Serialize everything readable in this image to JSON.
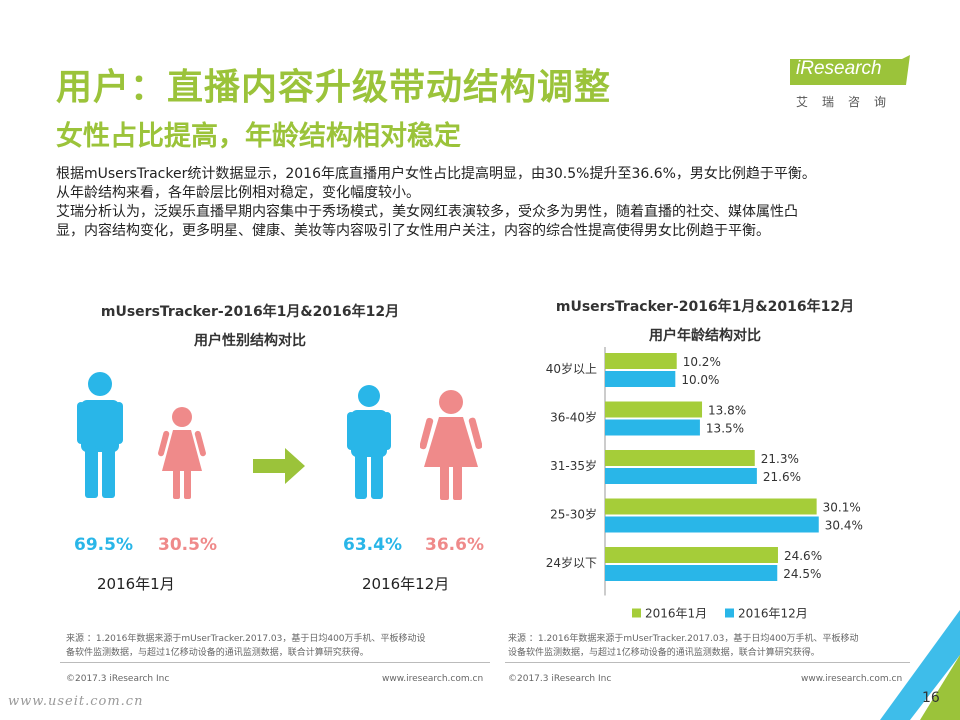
{
  "header": {
    "title": "用户：直播内容升级带动结构调整",
    "subtitle": "女性占比提高，年龄结构相对稳定"
  },
  "logo": {
    "name": "iResearch",
    "cn": "艾瑞咨询",
    "color": "#9bc33a"
  },
  "description": [
    "根据mUsersTracker统计数据显示，2016年底直播用户女性占比提高明显，由30.5%提升至36.6%，男女比例趋于平衡。",
    "从年龄结构来看，各年龄层比例相对稳定，变化幅度较小。",
    "艾瑞分析认为，泛娱乐直播早期内容集中于秀场模式，美女网红表演较多，受众多为男性，随着直播的社交、媒体属性凸",
    "显，内容结构变化，更多明星、健康、美妆等内容吸引了女性用户关注，内容的综合性提高使得男女比例趋于平衡。"
  ],
  "gender_chart": {
    "title_line1": "mUsersTracker-2016年1月&2016年12月",
    "title_line2": "用户性别结构对比",
    "male_color": "#29b6e8",
    "female_color": "#ef8a8a",
    "arrow_color": "#9bc33a",
    "periods": [
      {
        "label": "2016年1月",
        "male": "69.5%",
        "female": "30.5%"
      },
      {
        "label": "2016年12月",
        "male": "63.4%",
        "female": "36.6%"
      }
    ],
    "source_lines": [
      "来源 ：1.2016年数据来源于mUserTracker.2017.03，基于日均400万手机、平板移动设",
      "备软件监测数据，与超过1亿移动设备的通讯监测数据，联合计算研究获得。"
    ]
  },
  "chart_data": {
    "type": "bar",
    "orientation": "horizontal",
    "title": "mUsersTracker-2016年1月&2016年12月",
    "subtitle": "用户年龄结构对比",
    "categories": [
      "40岁以上",
      "36-40岁",
      "31-35岁",
      "25-30岁",
      "24岁以下"
    ],
    "series": [
      {
        "name": "2016年1月",
        "color": "#a5cd39",
        "values": [
          10.2,
          13.8,
          21.3,
          30.1,
          24.6
        ]
      },
      {
        "name": "2016年12月",
        "color": "#29b6e8",
        "values": [
          10.0,
          13.5,
          21.6,
          30.4,
          24.5
        ]
      }
    ],
    "xlim": [
      0,
      32
    ],
    "legend": "bottom",
    "source_lines": [
      "来源 ：1.2016年数据来源于mUserTracker.2017.03，基于日均400万手机、平板移动",
      "设备软件监测数据，与超过1亿移动设备的通讯监测数据，联合计算研究获得。"
    ]
  },
  "footer": {
    "copyright_left": "©2017.3 iResearch Inc",
    "url_left": "www.iresearch.com.cn",
    "copyright_right": "©2017.3 iResearch Inc",
    "url_right": "www.iresearch.com.cn",
    "page_number": "16",
    "watermark": "www.useit.com.cn",
    "accent_blue": "#29b6e8",
    "accent_green": "#9bc33a"
  }
}
